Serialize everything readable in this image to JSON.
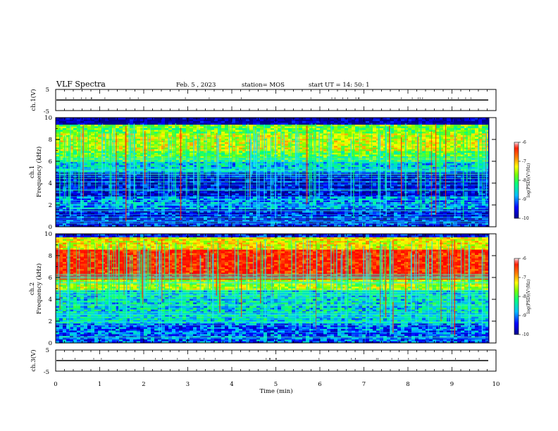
{
  "header": {
    "title": "VLF Spectra",
    "date": "Feb. 5 , 2023",
    "station": "station= MOS",
    "start": "start UT = 14: 50: 1"
  },
  "colors": {
    "spectrum_stops": [
      "#00008b",
      "#0000ff",
      "#00bfff",
      "#00ff80",
      "#7fff00",
      "#ffff00",
      "#ff8000",
      "#ff2000",
      "#ff0000"
    ]
  },
  "chart_data": [
    {
      "type": "line",
      "name": "ch.1 waveform",
      "ylabel": "ch.1(V)",
      "ylim": [
        -5,
        5
      ],
      "yticks": [
        "5",
        "-5"
      ],
      "x": [
        0,
        10
      ],
      "values": [
        0,
        0
      ]
    },
    {
      "type": "heatmap",
      "name": "ch.1 spectrogram",
      "ylabel": "ch.1\nFrequency (kHz)",
      "ylabel_line1": "ch.1",
      "ylabel_line2": "Frequency (kHz)",
      "ylim": [
        0,
        10
      ],
      "yticks": [
        "0",
        "2",
        "4",
        "6",
        "8",
        "10"
      ],
      "bands": [
        {
          "from": 0,
          "to": 1.6,
          "level": 0.12
        },
        {
          "from": 1.6,
          "to": 2.8,
          "level": 0.22
        },
        {
          "from": 2.8,
          "to": 5.0,
          "level": 0.08
        },
        {
          "from": 5.0,
          "to": 6.0,
          "level": 0.28
        },
        {
          "from": 6.0,
          "to": 7.0,
          "level": 0.45
        },
        {
          "from": 7.0,
          "to": 8.6,
          "level": 0.58
        },
        {
          "from": 8.6,
          "to": 9.3,
          "level": 0.48
        },
        {
          "from": 9.3,
          "to": 10,
          "level": 0.02
        }
      ],
      "colorbar": {
        "label": "log(PSD)(V²/Hz)",
        "ticks": [
          "-6",
          "-7",
          "-8",
          "-9",
          "-10"
        ],
        "range": [
          -10,
          -6
        ]
      }
    },
    {
      "type": "heatmap",
      "name": "ch.2 spectrogram",
      "ylabel": "ch.2\nFrequency (kHz)",
      "ylabel_line1": "ch.2",
      "ylabel_line2": "Frequency (kHz)",
      "ylim": [
        0,
        10
      ],
      "yticks": [
        "0",
        "2",
        "4",
        "6",
        "8",
        "10"
      ],
      "bands": [
        {
          "from": 0,
          "to": 1.8,
          "level": 0.18
        },
        {
          "from": 1.8,
          "to": 4.8,
          "level": 0.3
        },
        {
          "from": 4.8,
          "to": 5.8,
          "level": 0.55
        },
        {
          "from": 5.8,
          "to": 8.6,
          "level": 0.88
        },
        {
          "from": 8.6,
          "to": 9.6,
          "level": 0.62
        },
        {
          "from": 9.6,
          "to": 10,
          "level": 0.1
        }
      ],
      "colorbar": {
        "label": "log(PSD)(V²/Hz)",
        "ticks": [
          "-6",
          "-7",
          "-8",
          "-9",
          "-10"
        ],
        "range": [
          -10,
          -6
        ]
      }
    },
    {
      "type": "line",
      "name": "ch.3 waveform",
      "ylabel": "ch.3(V)",
      "ylim": [
        -5,
        5
      ],
      "yticks": [
        "5",
        "-5"
      ],
      "x": [
        0,
        10
      ],
      "values": [
        0,
        0
      ]
    }
  ],
  "xaxis": {
    "label": "Time (min)",
    "xlim": [
      0,
      10
    ],
    "ticks": [
      "0",
      "1",
      "2",
      "3",
      "4",
      "5",
      "6",
      "7",
      "8",
      "9",
      "10"
    ]
  }
}
